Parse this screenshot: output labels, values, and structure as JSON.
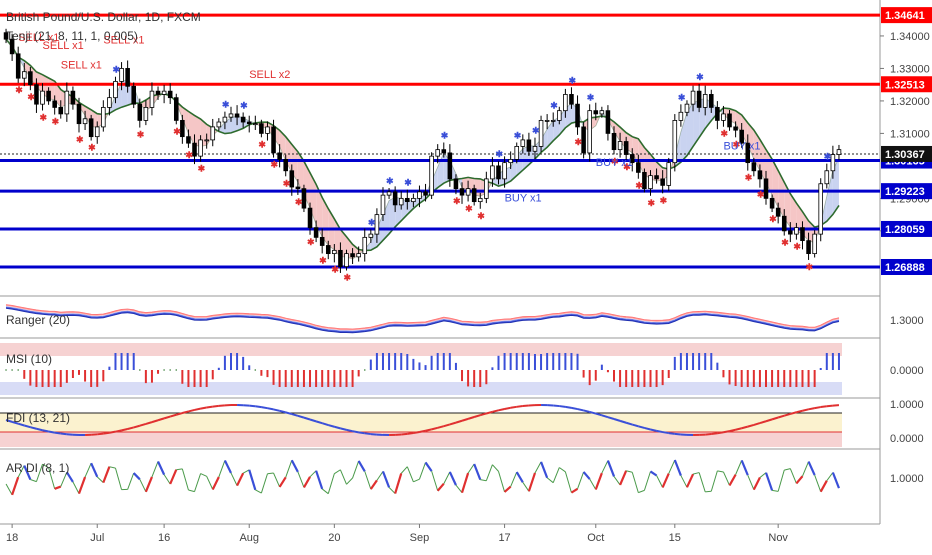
{
  "header": {
    "title": "British Pound/U.S. Dollar, 1D, FXCM",
    "indicator_main": "Tenji (21, 8, 11, 1, 0.005)"
  },
  "colors": {
    "up": "#ffffff",
    "down": "#000000",
    "red_line": "#ff0000",
    "blue_line": "#0000cc",
    "cloud_bear": "#f5c6c6",
    "cloud_bull": "#c9d3f0",
    "ma_line": "#2e6b2e",
    "sell_marker": "#e03030",
    "buy_marker": "#3a4fd8"
  },
  "chart_data": [
    {
      "type": "candlestick",
      "panel": "price",
      "x_ticks": [
        "18",
        "Jul",
        "16",
        "Aug",
        "20",
        "Sep",
        "17",
        "Oct",
        "15",
        "Nov"
      ],
      "y_ticks": [
        "1.34000",
        "1.33000",
        "1.32000",
        "1.31000",
        "1.29000",
        "1.28000"
      ],
      "ylim": [
        1.2618,
        1.3486
      ],
      "horizontal_levels": [
        {
          "value": 1.34641,
          "label": "1.34641",
          "color": "red"
        },
        {
          "value": 1.32513,
          "label": "1.32513",
          "color": "red"
        },
        {
          "value": 1.30165,
          "label": "1.30165",
          "color": "blue"
        },
        {
          "value": 1.29223,
          "label": "1.29223",
          "color": "blue"
        },
        {
          "value": 1.28059,
          "label": "1.28059",
          "color": "blue"
        },
        {
          "value": 1.26888,
          "label": "1.26888",
          "color": "blue"
        }
      ],
      "last_price": {
        "value": 1.30367,
        "label": "1.30367"
      },
      "signals": [
        {
          "text": "SELL x1"
        },
        {
          "text": "SELL x1"
        },
        {
          "text": "SELL x1"
        },
        {
          "text": "SELL x1"
        },
        {
          "text": "SELL x2"
        },
        {
          "text": "BUY x1"
        },
        {
          "text": "BUY x1"
        },
        {
          "text": "BUY x1"
        }
      ],
      "close": [
        1.339,
        1.3345,
        1.327,
        1.329,
        1.325,
        1.319,
        1.323,
        1.32,
        1.318,
        1.316,
        1.323,
        1.319,
        1.313,
        1.3145,
        1.309,
        1.312,
        1.318,
        1.321,
        1.326,
        1.33,
        1.3245,
        1.319,
        1.314,
        1.318,
        1.323,
        1.322,
        1.323,
        1.321,
        1.314,
        1.309,
        1.307,
        1.303,
        1.308,
        1.308,
        1.312,
        1.3135,
        1.315,
        1.316,
        1.315,
        1.3135,
        1.313,
        1.313,
        1.31,
        1.312,
        1.304,
        1.302,
        1.2985,
        1.2935,
        1.293,
        1.287,
        1.281,
        1.278,
        1.2755,
        1.273,
        1.274,
        1.269,
        1.273,
        1.272,
        1.273,
        1.278,
        1.279,
        1.285,
        1.291,
        1.292,
        1.288,
        1.29,
        1.289,
        1.29,
        1.292,
        1.291,
        1.303,
        1.305,
        1.304,
        1.296,
        1.293,
        1.291,
        1.293,
        1.289,
        1.29,
        1.296,
        1.3,
        1.296,
        1.301,
        1.302,
        1.306,
        1.308,
        1.3045,
        1.306,
        1.314,
        1.314,
        1.314,
        1.317,
        1.322,
        1.319,
        1.312,
        1.304,
        1.317,
        1.316,
        1.317,
        1.31,
        1.305,
        1.3075,
        1.3035,
        1.301,
        1.298,
        1.293,
        1.297,
        1.296,
        1.294,
        1.301,
        1.314,
        1.3165,
        1.319,
        1.323,
        1.318,
        1.322,
        1.318,
        1.314,
        1.316,
        1.312,
        1.311,
        1.307,
        1.301,
        1.2985,
        1.296,
        1.29,
        1.287,
        1.2845,
        1.28,
        1.279,
        1.281,
        1.277,
        1.273,
        1.279,
        1.2945,
        1.2985,
        1.3035,
        1.305
      ],
      "range_low": 1.269,
      "range_high": 1.346
    },
    {
      "type": "line",
      "panel": "Ranger (20)",
      "y_ticks": [
        "1.3000"
      ],
      "series": [
        {
          "name": "Ranger (20)"
        }
      ]
    },
    {
      "type": "bar",
      "panel": "MSI (10)",
      "y_ticks": [
        "0.0000"
      ],
      "series": [
        {
          "name": "MSI (10)"
        }
      ]
    },
    {
      "type": "line",
      "panel": "FDI (13, 21)",
      "y_ticks": [
        "1.0000",
        "0.0000"
      ],
      "series": [
        {
          "name": "FDI (13, 21)"
        }
      ]
    },
    {
      "type": "line",
      "panel": "AR DI (8, 1)",
      "y_ticks": [
        "1.0000"
      ],
      "series": [
        {
          "name": "AR DI (8, 1)"
        }
      ]
    }
  ]
}
